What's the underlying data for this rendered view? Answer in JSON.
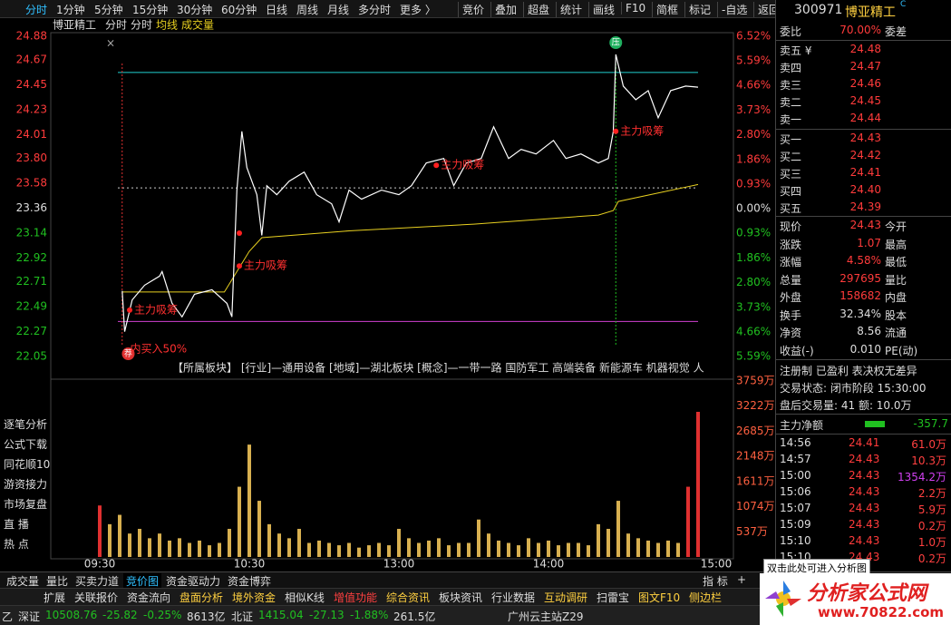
{
  "toolbar": {
    "left": [
      "分时",
      "1分钟",
      "5分钟",
      "15分钟",
      "30分钟",
      "60分钟",
      "日线",
      "周线",
      "月线",
      "多分时",
      "更多 〉"
    ],
    "right": [
      "竞价",
      "叠加",
      "超盘",
      "统计",
      "画线",
      "F10",
      "简框",
      "标记",
      "-自选",
      "返回"
    ]
  },
  "chart": {
    "header": {
      "name": "博亚精工",
      "items": [
        "分时",
        "分时"
      ],
      "avg": "均线",
      "vol": "成交量",
      "close": "×"
    },
    "price": {
      "ylim": [
        22.05,
        24.88
      ],
      "y2lim": [
        -5.59,
        6.52
      ],
      "yticks": [
        {
          "value": 24.88,
          "label": "24.88"
        },
        {
          "value": 24.67,
          "label": "24.67"
        },
        {
          "value": 24.45,
          "label": "24.45"
        },
        {
          "value": 24.23,
          "label": "24.23"
        },
        {
          "value": 24.01,
          "label": "24.01"
        },
        {
          "value": 23.8,
          "label": "23.80"
        },
        {
          "value": 23.58,
          "label": "23.58"
        },
        {
          "value": 23.36,
          "label": "23.36"
        },
        {
          "value": 23.14,
          "label": "23.14"
        },
        {
          "value": 22.92,
          "label": "22.92"
        },
        {
          "value": 22.71,
          "label": "22.71"
        },
        {
          "value": 22.49,
          "label": "22.49"
        },
        {
          "value": 22.27,
          "label": "22.27"
        },
        {
          "value": 22.05,
          "label": "22.05"
        }
      ],
      "y2ticks": [
        {
          "value": 6.52,
          "label": "6.52%"
        },
        {
          "value": 5.59,
          "label": "5.59%"
        },
        {
          "value": 4.66,
          "label": "4.66%"
        },
        {
          "value": 3.73,
          "label": "3.73%"
        },
        {
          "value": 2.8,
          "label": "2.80%"
        },
        {
          "value": 1.86,
          "label": "1.86%"
        },
        {
          "value": 0.93,
          "label": "0.93%"
        },
        {
          "value": 0,
          "label": "0.00%"
        },
        {
          "value": -0.93,
          "label": "0.93%"
        },
        {
          "value": -1.86,
          "label": "1.86%"
        },
        {
          "value": -2.8,
          "label": "2.80%"
        },
        {
          "value": -3.73,
          "label": "3.73%"
        },
        {
          "value": -4.66,
          "label": "4.66%"
        },
        {
          "value": -5.59,
          "label": "5.59%"
        }
      ],
      "xlim": [
        0,
        240
      ],
      "x": [
        9,
        10,
        13,
        18,
        24,
        25,
        29,
        33,
        38,
        45,
        51,
        53,
        55,
        57,
        59,
        63,
        65,
        67,
        71,
        76,
        82,
        87,
        93,
        96,
        100,
        105,
        113,
        120,
        125,
        131,
        138,
        142,
        147,
        153,
        158,
        164,
        169,
        175,
        182,
        187,
        193,
        200,
        204,
        206,
        207,
        210,
        215,
        220,
        224,
        229,
        235,
        240
      ],
      "values": [
        22.63,
        22.27,
        22.55,
        22.68,
        22.76,
        22.8,
        22.52,
        22.4,
        22.6,
        22.64,
        22.52,
        22.4,
        23.52,
        24.04,
        23.72,
        23.48,
        23.12,
        23.56,
        23.48,
        23.6,
        23.68,
        23.48,
        23.4,
        23.24,
        23.52,
        23.44,
        23.52,
        23.48,
        23.56,
        23.76,
        23.8,
        23.56,
        23.76,
        23.8,
        24.08,
        23.8,
        23.88,
        23.84,
        23.96,
        23.8,
        23.84,
        23.76,
        23.8,
        24.04,
        24.72,
        24.44,
        24.32,
        24.4,
        24.16,
        24.4,
        24.44,
        24.43
      ],
      "color": "#ffffff",
      "avg_x": [
        9,
        50,
        55,
        60,
        65,
        100,
        150,
        200,
        206,
        208,
        240
      ],
      "avg_values": [
        22.62,
        22.62,
        22.8,
        22.98,
        23.1,
        23.16,
        23.22,
        23.3,
        23.34,
        23.42,
        23.57
      ],
      "avg_color": "#e8d020",
      "levels": [
        {
          "value": 24.56,
          "color": "#20d0d0",
          "dash": false
        },
        {
          "value": 23.54,
          "color": "#cccccc",
          "dash": true
        },
        {
          "value": 22.36,
          "color": "#d040d0",
          "dash": false
        }
      ],
      "vlines": [
        {
          "value": 9,
          "color": "#e03030"
        },
        {
          "value": 207,
          "color": "#20c020"
        }
      ],
      "signals": [
        {
          "x": 12,
          "y": 22.46,
          "text": "主力吸筹"
        },
        {
          "x": 56,
          "y": 22.85,
          "text": "主力吸筹"
        },
        {
          "x": 56,
          "y": 23.14
        },
        {
          "x": 135,
          "y": 23.74,
          "text": "主力吸筹"
        },
        {
          "x": 207,
          "y": 24.04,
          "text": "主力吸筹"
        }
      ],
      "press": {
        "x": 207,
        "text": "压"
      },
      "buy": {
        "x": 10,
        "icon": "荐",
        "text": "内买入50%"
      }
    },
    "sector_text": "【所属板块】 [行业]—通用设备 [地域]—湖北板块 [概念]—一带一路 国防军工 高端装备 新能源车 机器视觉 人",
    "time_ticks": [
      {
        "value": 0,
        "label": "09:30"
      },
      {
        "value": 60,
        "label": "10:30"
      },
      {
        "value": 120,
        "label": "13:00"
      },
      {
        "value": 180,
        "label": "14:00"
      },
      {
        "value": 240,
        "label": "15:00"
      }
    ],
    "volume": {
      "ylim": [
        0,
        3759
      ],
      "yticks": [
        {
          "value": 3759,
          "label": "3759万"
        },
        {
          "value": 3222,
          "label": "3222万"
        },
        {
          "value": 2685,
          "label": "2685万"
        },
        {
          "value": 2148,
          "label": "2148万"
        },
        {
          "value": 1611,
          "label": "1611万"
        },
        {
          "value": 1074,
          "label": "1074万"
        },
        {
          "value": 537,
          "label": "537万"
        }
      ],
      "values": [
        1100,
        700,
        900,
        500,
        600,
        400,
        500,
        350,
        400,
        300,
        350,
        250,
        300,
        600,
        1500,
        2400,
        1200,
        700,
        500,
        400,
        600,
        300,
        350,
        300,
        250,
        300,
        200,
        250,
        300,
        250,
        600,
        400,
        300,
        350,
        400,
        250,
        300,
        300,
        800,
        500,
        350,
        300,
        250,
        400,
        300,
        350,
        250,
        300,
        300,
        250,
        700,
        600,
        1200,
        500,
        400,
        350,
        300,
        350,
        300,
        1500,
        3100
      ],
      "colors": [
        "#e03030",
        "#d8b050",
        "#d8b050",
        "#d8b050",
        "#d8b050",
        "#d8b050",
        "#d8b050",
        "#d8b050",
        "#d8b050",
        "#d8b050",
        "#d8b050",
        "#d8b050",
        "#d8b050",
        "#d8b050",
        "#d8b050",
        "#d8b050",
        "#d8b050",
        "#d8b050",
        "#d8b050",
        "#d8b050",
        "#d8b050",
        "#d8b050",
        "#d8b050",
        "#d8b050",
        "#d8b050",
        "#d8b050",
        "#d8b050",
        "#d8b050",
        "#d8b050",
        "#d8b050",
        "#d8b050",
        "#d8b050",
        "#d8b050",
        "#d8b050",
        "#d8b050",
        "#d8b050",
        "#d8b050",
        "#d8b050",
        "#d8b050",
        "#d8b050",
        "#d8b050",
        "#d8b050",
        "#d8b050",
        "#d8b050",
        "#d8b050",
        "#d8b050",
        "#d8b050",
        "#d8b050",
        "#d8b050",
        "#d8b050",
        "#d8b050",
        "#d8b050",
        "#d8b050",
        "#d8b050",
        "#d8b050",
        "#d8b050",
        "#d8b050",
        "#d8b050",
        "#d8b050",
        "#e03030",
        "#e03030"
      ]
    }
  },
  "side_menu": [
    "逐笔分析",
    "公式下载",
    "同花顺10",
    "游资接力",
    "市场复盘",
    "直 播",
    "热 点"
  ],
  "bottom_tabs": {
    "left": [
      "成交量",
      "量比",
      "买卖力道",
      "竞价图",
      "资金驱动力",
      "资金博弈"
    ],
    "right": [
      "指 标",
      "+"
    ]
  },
  "func_bar": [
    "扩展",
    "关联报价",
    "资金流向",
    "盘面分析",
    "境外资金",
    "相似K线",
    "增值功能",
    "综合资讯",
    "板块资讯",
    "行业数据",
    "互动调研",
    "扫雷宝",
    "图文F10",
    "侧边栏"
  ],
  "status": [
    "乙",
    "深证",
    "10508.76",
    "-25.82",
    "-0.25%",
    "8613亿",
    "北证",
    "1415.04",
    "-27.13",
    "-1.88%",
    "261.5亿",
    "广州云主站Z29"
  ],
  "panel": {
    "code": "300971",
    "name": "博亚精工",
    "sup": "C",
    "weibi": [
      "委比",
      "70.00%",
      "委差"
    ],
    "asks": [
      [
        "卖五 ¥",
        "24.48"
      ],
      [
        "卖四",
        "24.47"
      ],
      [
        "卖三",
        "24.46"
      ],
      [
        "卖二",
        "24.45"
      ],
      [
        "卖一",
        "24.44"
      ]
    ],
    "bids": [
      [
        "买一",
        "24.43"
      ],
      [
        "买二",
        "24.42"
      ],
      [
        "买三",
        "24.41"
      ],
      [
        "买四",
        "24.40"
      ],
      [
        "买五",
        "24.39"
      ]
    ],
    "quote": [
      [
        "现价",
        "24.43",
        "今开"
      ],
      [
        "涨跌",
        "1.07",
        "最高"
      ],
      [
        "涨幅",
        "4.58%",
        "最低"
      ],
      [
        "总量",
        "297695",
        "量比"
      ],
      [
        "外盘",
        "158682",
        "内盘"
      ],
      [
        "换手",
        "32.34%",
        "股本"
      ],
      [
        "净资",
        "8.56",
        "流通"
      ],
      [
        "收益(-)",
        "0.010",
        "PE(动)"
      ]
    ],
    "tags": "注册制 已盈利 表决权无差异",
    "trade_state": "交易状态: 闭市阶段 15:30:00",
    "after_hours": "盘后交易量: 41  额: 10.0万",
    "net": [
      "主力净额",
      "-357.7"
    ],
    "ticks": [
      [
        "14:56",
        "24.41",
        "61.0万"
      ],
      [
        "14:57",
        "24.43",
        "10.3万"
      ],
      [
        "15:00",
        "24.43",
        "1354.2万"
      ],
      [
        "15:06",
        "24.43",
        "2.2万"
      ],
      [
        "15:07",
        "24.43",
        "5.9万"
      ],
      [
        "15:09",
        "24.43",
        "0.2万"
      ],
      [
        "15:10",
        "24.43",
        "1.0万"
      ],
      [
        "15:10",
        "24.43",
        "0.2万"
      ]
    ],
    "tick_colors": [
      "#ff4040",
      "#ff4040",
      "#d040f0",
      "#ff4040",
      "#ff4040",
      "#ff4040",
      "#ff4040",
      "#ff4040"
    ]
  },
  "watermark": {
    "title": "分析家公式网",
    "url": "www.70822.com"
  },
  "tooltip": "双击此处可进入分析图"
}
